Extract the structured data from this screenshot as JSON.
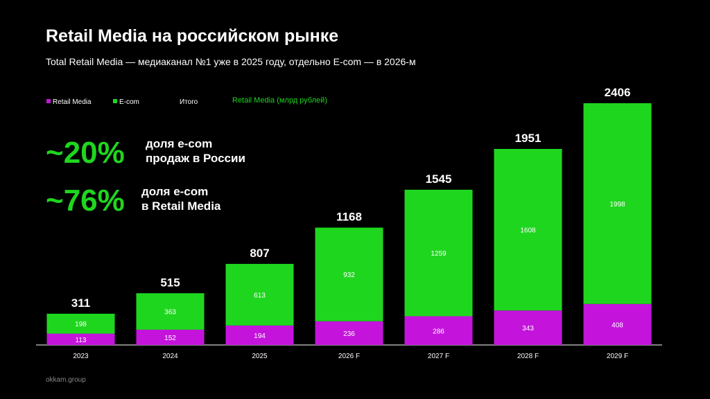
{
  "chart_data": {
    "type": "stacked-bar",
    "title": "Retail Media на российском рынке",
    "subtitle": "Total Retail Media — медиаканал №1 уже в 2025 году, отдельно E-com — в 2026-м",
    "chart_title": "Retail Media (млрд рублей)",
    "annotations": [
      {
        "value": "~20%",
        "lines": [
          "доля e-com",
          "продаж в России"
        ]
      },
      {
        "value": "~76%",
        "lines": [
          "доля e-com",
          "в Retail Media"
        ]
      }
    ],
    "source": "okkam.group",
    "categories": [
      "2023",
      "2024",
      "2025",
      "2026 F",
      "2027 F",
      "2028 F",
      "2029 F"
    ],
    "series": [
      {
        "name": "Retail Media",
        "color": "#c414dc",
        "values": [
          113,
          152,
          194,
          236,
          286,
          343,
          408
        ]
      },
      {
        "name": "E-com",
        "color": "#1fd61f",
        "values": [
          198,
          363,
          613,
          932,
          1259,
          1608,
          1998
        ]
      },
      {
        "name": "Итого",
        "values": [
          311,
          515,
          807,
          1168,
          1545,
          1951,
          2406
        ]
      }
    ]
  }
}
